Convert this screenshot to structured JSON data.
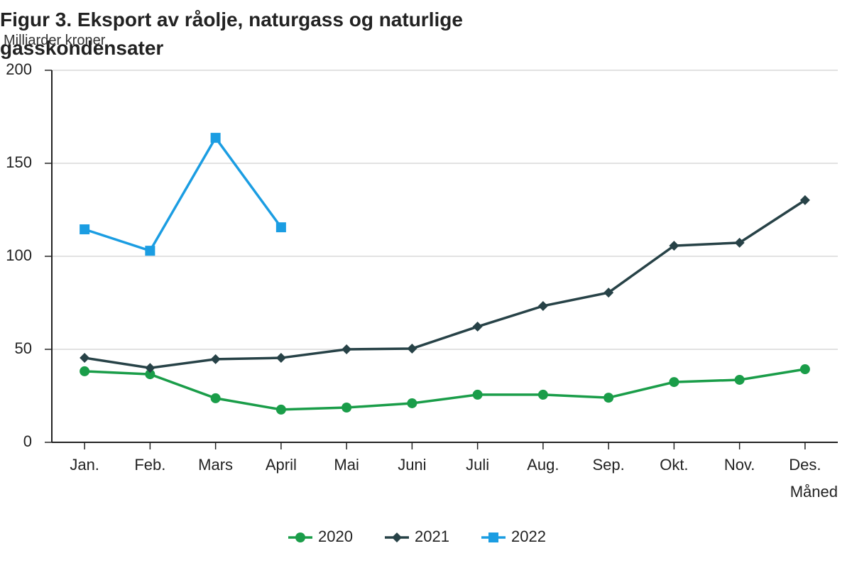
{
  "chart_data": {
    "type": "line",
    "title": "Figur 3. Eksport av råolje, naturgass og naturlige gasskondensater",
    "y_label": "Milliarder kroner",
    "x_label": "Måned",
    "categories": [
      "Jan.",
      "Feb.",
      "Mars",
      "April",
      "Mai",
      "Juni",
      "Juli",
      "Aug.",
      "Sep.",
      "Okt.",
      "Nov.",
      "Des."
    ],
    "series": [
      {
        "name": "2020",
        "color": "#1a9d49",
        "marker": "circle",
        "values": [
          38.2,
          36.6,
          23.7,
          17.6,
          18.7,
          21,
          25.6,
          25.6,
          24,
          32.4,
          33.6,
          39.3
        ]
      },
      {
        "name": "2021",
        "color": "#274247",
        "marker": "diamond",
        "values": [
          45.4,
          40,
          44.7,
          45.4,
          50,
          50.4,
          62.2,
          73.3,
          80.5,
          105.7,
          107.3,
          130.2
        ]
      },
      {
        "name": "2022",
        "color": "#1b9de2",
        "marker": "square",
        "values": [
          114.5,
          103,
          163.7,
          115.6,
          null,
          null,
          null,
          null,
          null,
          null,
          null,
          null
        ]
      }
    ],
    "ylim": [
      0,
      200
    ],
    "yticks": [
      0,
      50,
      100,
      150,
      200
    ],
    "grid": true,
    "legend": "bottom"
  }
}
